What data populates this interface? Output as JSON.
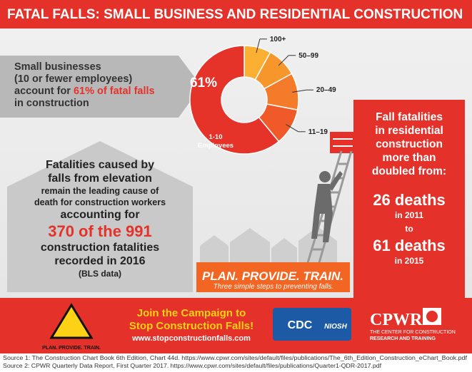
{
  "header": {
    "title": "FATAL FALLS: SMALL BUSINESS AND RESIDENTIAL CONSTRUCTION"
  },
  "small_business": {
    "line1": "Small businesses",
    "line2": "(10 or fewer employees)",
    "line3": "account for",
    "highlight": "61% of fatal falls",
    "line4": "in construction"
  },
  "chart_data": {
    "type": "pie",
    "categories": [
      "100+",
      "50–99",
      "20–49",
      "11–19",
      "1-10 Employees"
    ],
    "values": [
      8,
      9,
      11,
      11,
      61
    ],
    "value_labels": [
      null,
      null,
      null,
      null,
      "61%"
    ],
    "colors": [
      "#fbb034",
      "#f7962b",
      "#f47b2a",
      "#f05a28",
      "#e5332a"
    ],
    "donut": true
  },
  "elevation": {
    "lines": [
      "Fatalities caused by",
      "falls from elevation",
      "remain the leading cause of",
      "death for construction workers",
      "accounting for",
      "370 of the 991",
      "construction fatalities",
      "recorded in 2016",
      "(BLS data)"
    ]
  },
  "residential": {
    "lines": [
      "Fall fatalities",
      "in residential",
      "construction",
      "more than",
      "doubled from:"
    ],
    "from_value": "26 deaths",
    "from_year": "in 2011",
    "to": "to",
    "to_value": "61 deaths",
    "to_year": "in 2015"
  },
  "plan": {
    "title": "PLAN. PROVIDE. TRAIN.",
    "subtitle": "Three simple steps to preventing falls."
  },
  "campaign": {
    "line1": "Join the Campaign to",
    "line2": "Stop Construction Falls!",
    "url": "www.stopconstructionfalls.com"
  },
  "logos": {
    "plan_small": "PLAN. PROVIDE. TRAIN.",
    "cdc": "CDC",
    "niosh": "NIOSH",
    "cpwr": "CPWR",
    "cpwr_sub1": "THE CENTER FOR CONSTRUCTION",
    "cpwr_sub2": "RESEARCH AND TRAINING"
  },
  "sources": [
    "Source 1: The Construction Chart Book 6th Edition, Chart 44d. https://www.cpwr.com/sites/default/files/publications/The_6th_Edition_Construction_eChart_Book.pdf",
    "Source 2: CPWR Quarterly Data Report, First Quarter 2017. https://www.cpwr.com/sites/default/files/publications/Quarter1-QDR-2017.pdf"
  ]
}
